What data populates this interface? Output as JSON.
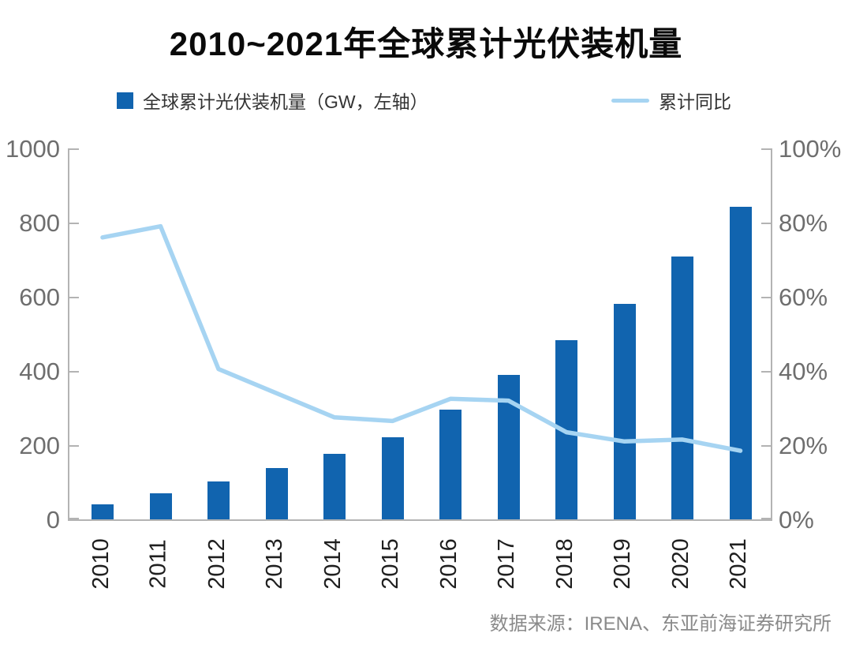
{
  "source": "数据来源：IRENA、东亚前海证券研究所",
  "colors": {
    "bar": "#1164af",
    "line": "#a6d4f2",
    "axis": "#b3b3b3",
    "tick_label": "#6e6e6e",
    "x_label": "#1f1f1f"
  },
  "chart_data": {
    "type": "bar+line",
    "title": "2010~2021年全球累计光伏装机量",
    "categories": [
      "2010",
      "2011",
      "2012",
      "2013",
      "2014",
      "2015",
      "2016",
      "2017",
      "2018",
      "2019",
      "2020",
      "2021"
    ],
    "series": [
      {
        "name": "全球累计光伏装机量（GW，左轴）",
        "type": "bar",
        "axis": "left",
        "unit": "GW",
        "values": [
          40,
          71,
          102,
          139,
          177,
          222,
          295,
          390,
          483,
          580,
          708,
          843
        ]
      },
      {
        "name": "累计同比",
        "type": "line",
        "axis": "right",
        "unit": "%",
        "values": [
          76,
          79,
          40.5,
          34,
          27.5,
          26.5,
          32.5,
          32,
          23.5,
          21,
          21.5,
          18.5
        ]
      }
    ],
    "left_axis": {
      "min": 0,
      "max": 1000,
      "step": 200,
      "ticks": [
        "1000",
        "800",
        "600",
        "400",
        "200",
        "0"
      ]
    },
    "right_axis": {
      "min": 0,
      "max": 100,
      "step": 20,
      "ticks": [
        "100%",
        "80%",
        "60%",
        "40%",
        "20%",
        "0%"
      ]
    },
    "grid": false,
    "legend_position": "top"
  }
}
